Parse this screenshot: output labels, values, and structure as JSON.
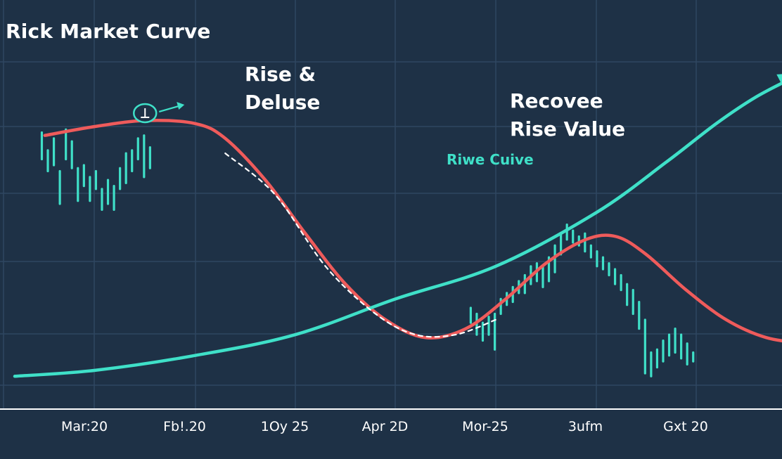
{
  "chart_data": {
    "type": "line",
    "title": "Rick Market Curve",
    "xlabel": "",
    "ylabel": "",
    "categories": [
      "Mar:20",
      "Fb!.20",
      "1Oy 25",
      "Apr 2D",
      "Mor-25",
      "3ufm",
      "Gxt 20"
    ],
    "xlim": [
      0,
      7.2
    ],
    "ylim": [
      0,
      100
    ],
    "grid": true,
    "series": [
      {
        "name": "",
        "color": "#ef5b5b",
        "style": "solid-arrow",
        "x": [
          -0.5,
          0.0,
          0.5,
          1.0,
          1.3,
          1.7,
          2.1,
          2.5,
          2.9,
          3.3,
          3.7,
          4.1,
          4.5,
          4.9,
          5.2,
          5.5,
          5.9,
          6.3,
          6.7,
          7.1
        ],
        "y": [
          84,
          87,
          89,
          88,
          83,
          69,
          51,
          34,
          22,
          16,
          19,
          29,
          41,
          49,
          50,
          44,
          32,
          22,
          16,
          14
        ]
      },
      {
        "name": "Riwe Cuive",
        "color": "#3fe0c8",
        "style": "solid-arrow",
        "x": [
          -0.8,
          0.0,
          1.0,
          2.0,
          3.0,
          4.0,
          5.0,
          5.7,
          6.2,
          6.6,
          7.0
        ],
        "y": [
          3,
          5,
          10,
          17,
          29,
          40,
          58,
          75,
          88,
          97,
          104
        ]
      },
      {
        "name": "",
        "color": "#ffffff",
        "style": "dashed",
        "x": [
          1.3,
          1.8,
          2.3,
          2.8,
          3.2,
          3.6,
          4.0
        ],
        "y": [
          78,
          64,
          40,
          24,
          17,
          17,
          22
        ]
      }
    ],
    "bars": [
      {
        "x": -0.53,
        "y0": 76,
        "y1": 85
      },
      {
        "x": -0.47,
        "y0": 79,
        "y1": 72
      },
      {
        "x": -0.41,
        "y0": 83,
        "y1": 74
      },
      {
        "x": -0.35,
        "y0": 72,
        "y1": 61
      },
      {
        "x": -0.29,
        "y0": 76,
        "y1": 86
      },
      {
        "x": -0.23,
        "y0": 73,
        "y1": 82
      },
      {
        "x": -0.17,
        "y0": 62,
        "y1": 73
      },
      {
        "x": -0.11,
        "y0": 74,
        "y1": 67
      },
      {
        "x": -0.05,
        "y0": 70,
        "y1": 62
      },
      {
        "x": 0.01,
        "y0": 66,
        "y1": 72
      },
      {
        "x": 0.07,
        "y0": 59,
        "y1": 66
      },
      {
        "x": 0.13,
        "y0": 61,
        "y1": 69
      },
      {
        "x": 0.19,
        "y0": 59,
        "y1": 67
      },
      {
        "x": 0.25,
        "y0": 73,
        "y1": 66
      },
      {
        "x": 0.31,
        "y0": 68,
        "y1": 78
      },
      {
        "x": 0.37,
        "y0": 79,
        "y1": 72
      },
      {
        "x": 0.43,
        "y0": 76,
        "y1": 83
      },
      {
        "x": 0.49,
        "y0": 70,
        "y1": 84
      },
      {
        "x": 0.55,
        "y0": 80,
        "y1": 73
      },
      {
        "x": 3.75,
        "y0": 21,
        "y1": 26
      },
      {
        "x": 3.81,
        "y0": 17,
        "y1": 24
      },
      {
        "x": 3.87,
        "y0": 15,
        "y1": 21
      },
      {
        "x": 3.93,
        "y0": 17,
        "y1": 23
      },
      {
        "x": 3.99,
        "y0": 12,
        "y1": 24
      },
      {
        "x": 4.05,
        "y0": 24,
        "y1": 29
      },
      {
        "x": 4.11,
        "y0": 27,
        "y1": 31
      },
      {
        "x": 4.17,
        "y0": 28,
        "y1": 33
      },
      {
        "x": 4.23,
        "y0": 31,
        "y1": 35
      },
      {
        "x": 4.29,
        "y0": 31,
        "y1": 37
      },
      {
        "x": 4.35,
        "y0": 34,
        "y1": 40
      },
      {
        "x": 4.41,
        "y0": 35,
        "y1": 41
      },
      {
        "x": 4.47,
        "y0": 33,
        "y1": 40
      },
      {
        "x": 4.53,
        "y0": 35,
        "y1": 43
      },
      {
        "x": 4.59,
        "y0": 38,
        "y1": 47
      },
      {
        "x": 4.65,
        "y0": 44,
        "y1": 51
      },
      {
        "x": 4.71,
        "y0": 49,
        "y1": 54
      },
      {
        "x": 4.77,
        "y0": 48,
        "y1": 52
      },
      {
        "x": 4.83,
        "y0": 47,
        "y1": 50
      },
      {
        "x": 4.89,
        "y0": 45,
        "y1": 51
      },
      {
        "x": 4.95,
        "y0": 43,
        "y1": 47
      },
      {
        "x": 5.01,
        "y0": 40,
        "y1": 45
      },
      {
        "x": 5.07,
        "y0": 39,
        "y1": 43
      },
      {
        "x": 5.13,
        "y0": 37,
        "y1": 41
      },
      {
        "x": 5.19,
        "y0": 34,
        "y1": 39
      },
      {
        "x": 5.25,
        "y0": 32,
        "y1": 37
      },
      {
        "x": 5.31,
        "y0": 27,
        "y1": 34
      },
      {
        "x": 5.37,
        "y0": 24,
        "y1": 32
      },
      {
        "x": 5.43,
        "y0": 19,
        "y1": 28
      },
      {
        "x": 5.49,
        "y0": 4,
        "y1": 22
      },
      {
        "x": 5.55,
        "y0": 3,
        "y1": 11
      },
      {
        "x": 5.61,
        "y0": 6,
        "y1": 12
      },
      {
        "x": 5.67,
        "y0": 8,
        "y1": 15
      },
      {
        "x": 5.73,
        "y0": 10,
        "y1": 17
      },
      {
        "x": 5.79,
        "y0": 11,
        "y1": 19
      },
      {
        "x": 5.85,
        "y0": 9,
        "y1": 17
      },
      {
        "x": 5.91,
        "y0": 7,
        "y1": 14
      },
      {
        "x": 5.97,
        "y0": 8,
        "y1": 11
      }
    ],
    "annotations": [
      {
        "lines": [
          "Rise &",
          "Deluse"
        ]
      },
      {
        "lines": [
          "Recovee",
          "Rise Value"
        ]
      },
      {
        "lines": [
          "Riwe Cuive"
        ]
      }
    ],
    "colors": {
      "background": "#1e3146",
      "grid": "#2f4761",
      "axis": "#ffffff",
      "red": "#ef5b5b",
      "teal": "#3fe0c8"
    }
  }
}
